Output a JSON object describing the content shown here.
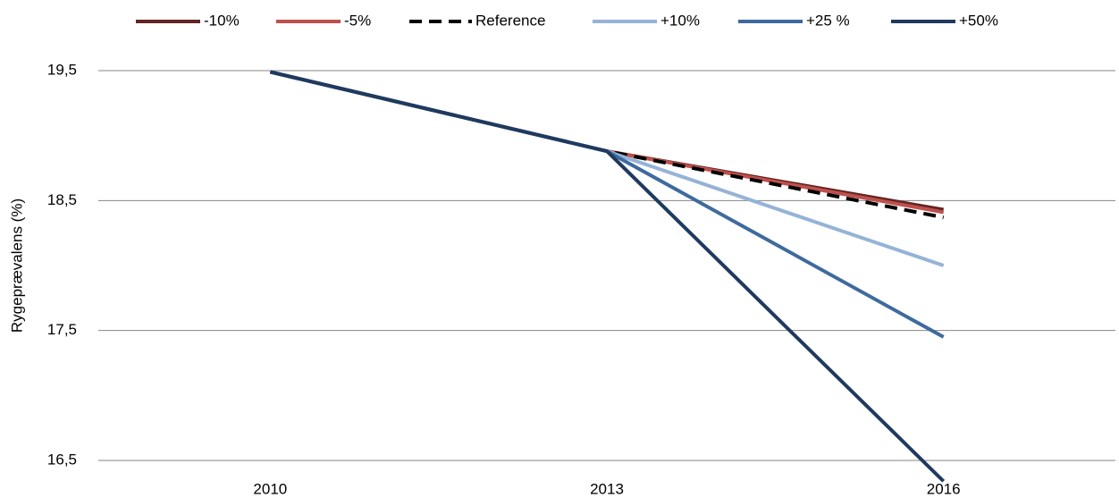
{
  "chart_data": {
    "type": "line",
    "y_label": "Rygeprævalens (%)",
    "categories": [
      "2010",
      "2013",
      "2016"
    ],
    "series": [
      {
        "name": "-10%",
        "color": "#632523",
        "values": [
          19.49,
          18.88,
          18.43
        ]
      },
      {
        "name": "-5%",
        "color": "#c0504d",
        "values": [
          19.49,
          18.88,
          18.41
        ]
      },
      {
        "name": "Reference",
        "color": "#000000",
        "dashed": true,
        "values": [
          19.49,
          18.88,
          18.37
        ]
      },
      {
        "name": "+10%",
        "color": "#95b3d7",
        "values": [
          19.49,
          18.88,
          18.0
        ]
      },
      {
        "name": "+25 %",
        "color": "#3e6a9e",
        "values": [
          19.49,
          18.88,
          17.45
        ]
      },
      {
        "name": "+50%",
        "color": "#1f3a5f",
        "values": [
          19.49,
          18.88,
          16.34
        ]
      }
    ],
    "ylim": [
      16.5,
      19.5
    ],
    "yticks": [
      {
        "value": 16.5,
        "label": "16,5"
      },
      {
        "value": 17.5,
        "label": "17,5"
      },
      {
        "value": 18.5,
        "label": "18,5"
      },
      {
        "value": 19.5,
        "label": "19,5"
      }
    ],
    "grid": true,
    "legend": "top"
  }
}
